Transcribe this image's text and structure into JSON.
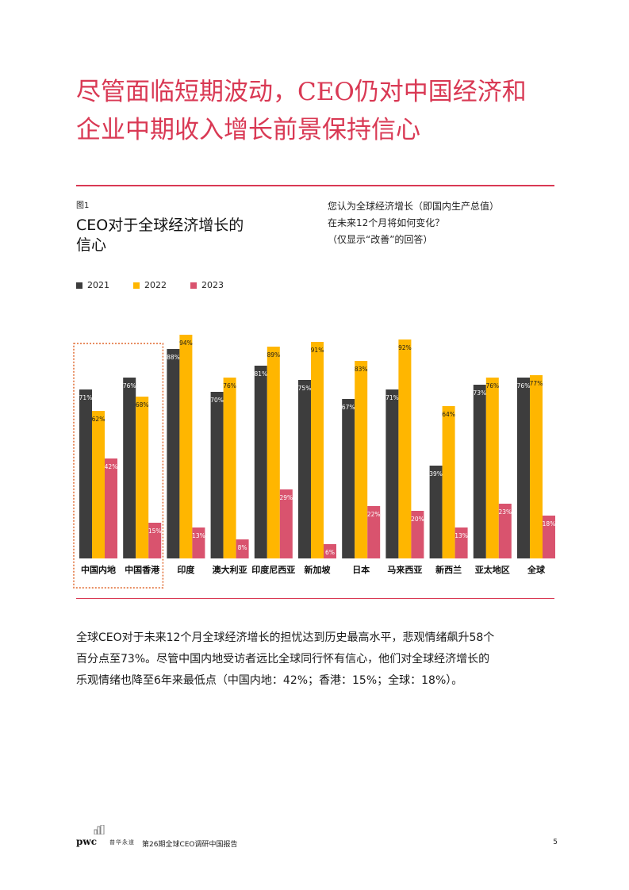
{
  "headline": {
    "line1": "尽管面临短期波动，CEO仍对中国经济和",
    "line2": "企业中期收入增长前景保持信心"
  },
  "figure": {
    "label": "图1",
    "title_line1": "CEO对于全球经济增长的",
    "title_line2": "信心",
    "question_line1": "您认为全球经济增长（即国内生产总值）",
    "question_line2": "在未来12个月将如何变化？",
    "question_line3": "（仅显示“改善”的回答）"
  },
  "colors": {
    "accent": "#d93954",
    "series_2021": "#3d3d3d",
    "series_2022": "#ffb600",
    "series_2023": "#d9536e",
    "highlight_border": "#e0692e"
  },
  "chart_data": {
    "type": "bar",
    "categories": [
      "中国内地",
      "中国香港",
      "印度",
      "澳大利亚",
      "印度尼西亚",
      "新加坡",
      "日本",
      "马来西亚",
      "新西兰",
      "亚太地区",
      "全球"
    ],
    "series": [
      {
        "name": "2021",
        "values": [
          71,
          76,
          88,
          70,
          81,
          75,
          67,
          71,
          39,
          73,
          76
        ]
      },
      {
        "name": "2022",
        "values": [
          62,
          68,
          94,
          76,
          89,
          91,
          83,
          92,
          64,
          76,
          77
        ]
      },
      {
        "name": "2023",
        "values": [
          42,
          15,
          13,
          8,
          29,
          6,
          22,
          20,
          13,
          23,
          18
        ]
      }
    ],
    "unit": "%",
    "ylim": [
      0,
      100
    ],
    "grid": false,
    "legend": "top-left",
    "highlighted_categories": [
      "中国内地",
      "中国香港"
    ]
  },
  "body": {
    "line1": "全球CEO对于未来12个月全球经济增长的担忧达到历史最高水平，悲观情绪飙升58个",
    "line2": "百分点至73%。尽管中国内地受访者远比全球同行怀有信心，他们对全球经济增长的",
    "line3": "乐观情绪也降至6年来最低点（中国内地：42%；香港：15%；全球：18%）。"
  },
  "footer": {
    "brand": "pwc",
    "brand_cn": "普华永道",
    "title": "第26期全球CEO调研中国报告",
    "page": "5"
  }
}
